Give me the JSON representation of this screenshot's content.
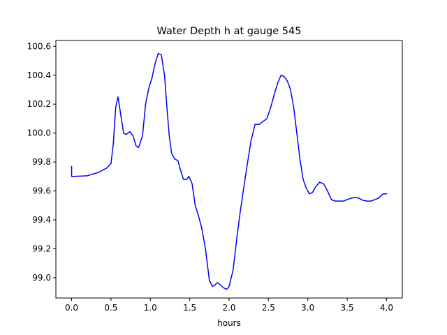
{
  "chart_data": {
    "type": "line",
    "title": "Water Depth h at gauge 545",
    "xlabel": "hours",
    "ylabel": "",
    "xlim": [
      -0.2,
      4.2
    ],
    "ylim": [
      98.86,
      100.64
    ],
    "xticks": [
      0.0,
      0.5,
      1.0,
      1.5,
      2.0,
      2.5,
      3.0,
      3.5,
      4.0
    ],
    "xtick_labels": [
      "0.0",
      "0.5",
      "1.0",
      "1.5",
      "2.0",
      "2.5",
      "3.0",
      "3.5",
      "4.0"
    ],
    "yticks": [
      99.0,
      99.2,
      99.4,
      99.6,
      99.8,
      100.0,
      100.2,
      100.4,
      100.6
    ],
    "ytick_labels": [
      "99.0",
      "99.2",
      "99.4",
      "99.6",
      "99.8",
      "100.0",
      "100.2",
      "100.4",
      "100.6"
    ],
    "grid": false,
    "line_color": "#0000ff",
    "series": [
      {
        "x": [
          0.0,
          0.0,
          0.2,
          0.35,
          0.45,
          0.5,
          0.53,
          0.56,
          0.59,
          0.62,
          0.66,
          0.69,
          0.74,
          0.78,
          0.82,
          0.85,
          0.9,
          0.94,
          0.98,
          1.02,
          1.06,
          1.1,
          1.14,
          1.18,
          1.21,
          1.24,
          1.27,
          1.31,
          1.35,
          1.38,
          1.42,
          1.46,
          1.49,
          1.53,
          1.57,
          1.61,
          1.65,
          1.7,
          1.75,
          1.79,
          1.82,
          1.85,
          1.87,
          1.9,
          1.93,
          1.97,
          2.0,
          2.05,
          2.1,
          2.14,
          2.18,
          2.23,
          2.28,
          2.33,
          2.38,
          2.43,
          2.48,
          2.53,
          2.58,
          2.62,
          2.66,
          2.7,
          2.74,
          2.78,
          2.82,
          2.86,
          2.9,
          2.94,
          2.98,
          3.02,
          3.06,
          3.1,
          3.15,
          3.2,
          3.25,
          3.3,
          3.35,
          3.4,
          3.45,
          3.5,
          3.55,
          3.6,
          3.65,
          3.7,
          3.75,
          3.8,
          3.85,
          3.9,
          3.95,
          3.98,
          4.0
        ],
        "y": [
          99.77,
          99.7,
          99.705,
          99.73,
          99.76,
          99.79,
          99.93,
          100.18,
          100.25,
          100.14,
          100.0,
          99.99,
          100.01,
          99.98,
          99.91,
          99.9,
          99.98,
          100.2,
          100.31,
          100.38,
          100.48,
          100.55,
          100.54,
          100.4,
          100.18,
          99.98,
          99.86,
          99.82,
          99.81,
          99.75,
          99.68,
          99.68,
          99.7,
          99.65,
          99.5,
          99.43,
          99.35,
          99.2,
          98.98,
          98.94,
          98.95,
          98.965,
          98.96,
          98.945,
          98.93,
          98.92,
          98.94,
          99.05,
          99.28,
          99.45,
          99.6,
          99.78,
          99.95,
          100.06,
          100.06,
          100.08,
          100.1,
          100.18,
          100.28,
          100.35,
          100.4,
          100.39,
          100.36,
          100.3,
          100.18,
          100.0,
          99.82,
          99.68,
          99.62,
          99.58,
          99.59,
          99.63,
          99.66,
          99.65,
          99.6,
          99.54,
          99.53,
          99.53,
          99.53,
          99.54,
          99.55,
          99.555,
          99.55,
          99.535,
          99.53,
          99.53,
          99.54,
          99.55,
          99.578,
          99.58,
          99.58
        ]
      }
    ]
  }
}
